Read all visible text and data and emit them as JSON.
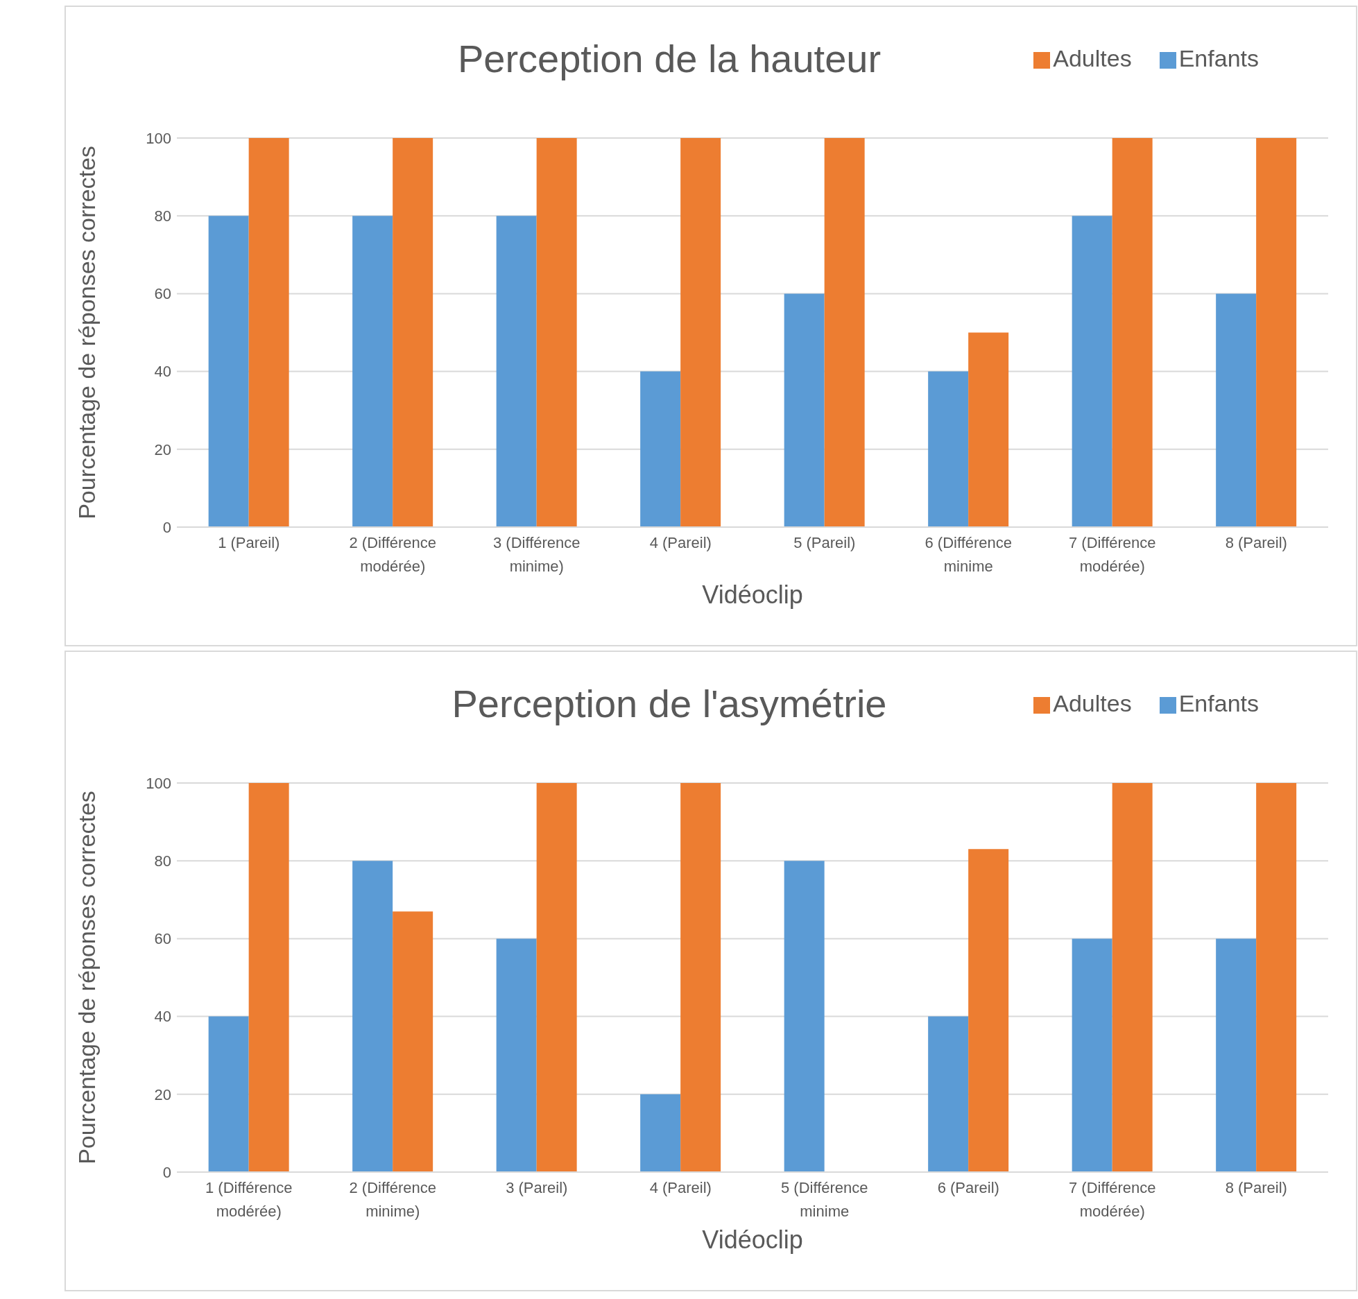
{
  "chart_data": [
    {
      "type": "bar",
      "title": "Perception de la hauteur",
      "xlabel": "Vidéoclip",
      "ylabel": "Pourcentage de réponses correctes",
      "categories": [
        "1 (Pareil)",
        "2 (Différence modérée)",
        "3 (Différence minime)",
        "4 (Pareil)",
        "5 (Pareil)",
        "6 (Différence minime",
        "7 (Différence modérée)",
        "8 (Pareil)"
      ],
      "series": [
        {
          "name": "Enfants",
          "color": "#5b9bd5",
          "values": [
            80,
            80,
            80,
            40,
            60,
            40,
            80,
            60
          ]
        },
        {
          "name": "Adultes",
          "color": "#ed7d31",
          "values": [
            100,
            100,
            100,
            100,
            100,
            50,
            100,
            100
          ]
        }
      ],
      "ylim": [
        0,
        100
      ],
      "yticks": [
        0,
        20,
        40,
        60,
        80,
        100
      ],
      "grid": "y",
      "legend": "top right"
    },
    {
      "type": "bar",
      "title": "Perception de l'asymétrie",
      "xlabel": "Vidéoclip",
      "ylabel": "Pourcentage de réponses correctes",
      "categories": [
        "1 (Différence modérée)",
        "2 (Différence minime)",
        "3 (Pareil)",
        "4 (Pareil)",
        "5 (Différence minime",
        "6 (Pareil)",
        "7 (Différence modérée)",
        "8 (Pareil)"
      ],
      "series": [
        {
          "name": "Enfants",
          "color": "#5b9bd5",
          "values": [
            40,
            80,
            60,
            20,
            80,
            40,
            60,
            60
          ]
        },
        {
          "name": "Adultes",
          "color": "#ed7d31",
          "values": [
            100,
            67,
            100,
            100,
            0,
            83,
            100,
            100
          ]
        }
      ],
      "ylim": [
        0,
        100
      ],
      "yticks": [
        0,
        20,
        40,
        60,
        80,
        100
      ],
      "grid": "y",
      "legend": "top right"
    }
  ]
}
